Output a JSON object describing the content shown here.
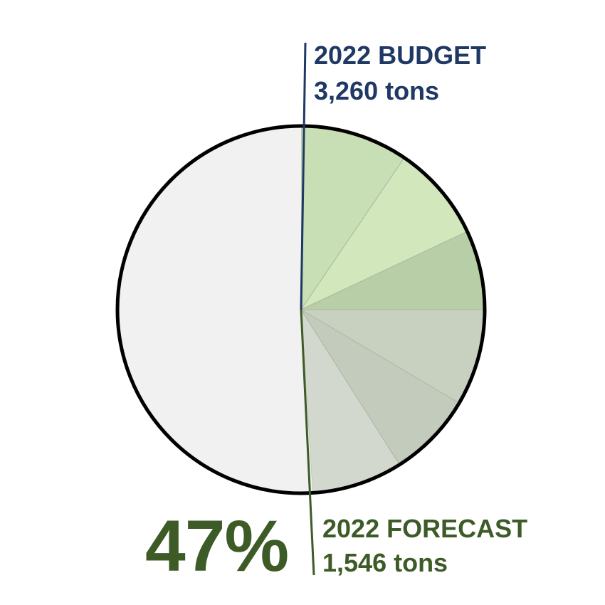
{
  "chart_data": {
    "type": "pie",
    "budget": {
      "title": "2022 BUDGET",
      "value_label": "3,260 tons",
      "value": 3260,
      "unit": "tons"
    },
    "forecast": {
      "title": "2022 FORECAST",
      "value_label": "1,546 tons",
      "value": 1546,
      "unit": "tons"
    },
    "percent_label": "47%",
    "percent": 47,
    "slices": [
      {
        "value": 9.5,
        "color": "#c8deb4"
      },
      {
        "value": 8.5,
        "color": "#d2e7bb"
      },
      {
        "value": 7.0,
        "color": "#b8cea6"
      },
      {
        "value": 8.5,
        "color": "#c8d1c0"
      },
      {
        "value": 7.5,
        "color": "#c3cbbc"
      },
      {
        "value": 8.0,
        "color": "#d2d8cd"
      },
      {
        "value": 51.0,
        "color": "#f1f1f1"
      }
    ],
    "colors": {
      "budget": "#1f3864",
      "forecast": "#3d5b27",
      "outline": "#000000"
    }
  }
}
